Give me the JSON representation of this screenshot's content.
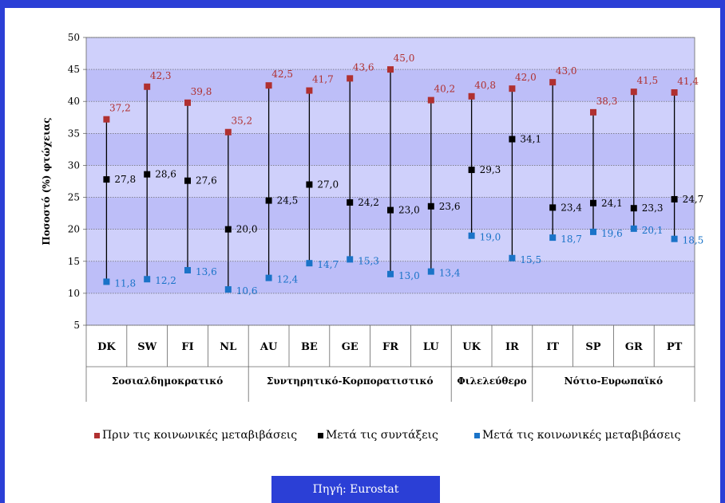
{
  "chart_data": {
    "type": "scatter",
    "ylabel": "Ποσοστό (%) φτώχειας",
    "ylim": [
      5,
      50
    ],
    "yticks": [
      5,
      10,
      15,
      20,
      25,
      30,
      35,
      40,
      45,
      50
    ],
    "grid": true,
    "legend_position": "bottom",
    "categories": [
      "DK",
      "SW",
      "FI",
      "NL",
      "AU",
      "BE",
      "GE",
      "FR",
      "LU",
      "UK",
      "IR",
      "IT",
      "SP",
      "GR",
      "PT"
    ],
    "groups": [
      {
        "label": "Σοσιαλδημοκρατικό",
        "members": [
          "DK",
          "SW",
          "FI",
          "NL"
        ]
      },
      {
        "label": "Συντηρητικό-Κορπορατιστικό",
        "members": [
          "AU",
          "BE",
          "GE",
          "FR",
          "LU"
        ]
      },
      {
        "label": "Φιλελεύθερο",
        "members": [
          "UK",
          "IR"
        ]
      },
      {
        "label": "Νότιο-Ευρωπαϊκό",
        "members": [
          "IT",
          "SP",
          "GR",
          "PT"
        ]
      }
    ],
    "series": [
      {
        "name": "Πριν τις κοινωνικές μεταβιβάσεις",
        "color": "#b03030",
        "label_color": "#b03030",
        "values": [
          37.2,
          42.3,
          39.8,
          35.2,
          42.5,
          41.7,
          43.6,
          45.0,
          40.2,
          40.8,
          42.0,
          43.0,
          38.3,
          41.5,
          41.4
        ],
        "labels": [
          "37,2",
          "42,3",
          "39,8",
          "35,2",
          "42,5",
          "41,7",
          "43,6",
          "45,0",
          "40,2",
          "40,8",
          "42,0",
          "43,0",
          "38,3",
          "41,5",
          "41,4"
        ]
      },
      {
        "name": "Μετά τις συντάξεις",
        "color": "#000000",
        "label_color": "#000000",
        "values": [
          27.8,
          28.6,
          27.6,
          20.0,
          24.5,
          27.0,
          24.2,
          23.0,
          23.6,
          29.3,
          34.1,
          23.4,
          24.1,
          23.3,
          24.7
        ],
        "labels": [
          "27,8",
          "28,6",
          "27,6",
          "20,0",
          "24,5",
          "27,0",
          "24,2",
          "23,0",
          "23,6",
          "29,3",
          "34,1",
          "23,4",
          "24,1",
          "23,3",
          "24,7"
        ]
      },
      {
        "name": "Μετά τις κοινωνικές μεταβιβάσεις",
        "color": "#1a73c8",
        "label_color": "#1a73c8",
        "values": [
          11.8,
          12.2,
          13.6,
          10.6,
          12.4,
          14.7,
          15.3,
          13.0,
          13.4,
          19.0,
          15.5,
          18.7,
          19.6,
          20.1,
          18.5
        ],
        "labels": [
          "11,8",
          "12,2",
          "13,6",
          "10,6",
          "12,4",
          "14,7",
          "15,3",
          "13,0",
          "13,4",
          "19,0",
          "15,5",
          "18,7",
          "19,6",
          "20,1",
          "18,5"
        ]
      }
    ]
  },
  "source_text": "Πηγή: Eurostat"
}
